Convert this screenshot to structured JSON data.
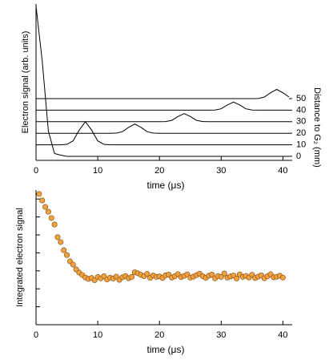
{
  "chart_data": [
    {
      "type": "line",
      "ylabel": "Electron signal (arb. units)",
      "y2label": "Distance to G₂ (mm)",
      "xlabel": "time (μs)",
      "x": [
        0,
        1,
        2,
        3,
        4,
        5,
        6,
        7,
        8,
        9,
        10,
        11,
        12,
        13,
        14,
        15,
        16,
        17,
        18,
        19,
        20,
        21,
        22,
        23,
        24,
        25,
        26,
        27,
        28,
        29,
        30,
        31,
        32,
        33,
        34,
        35,
        36,
        37,
        38,
        39,
        40,
        41
      ],
      "series": [
        {
          "color": "#000000",
          "values": [
            130,
            83,
            22,
            2.4,
            1,
            0,
            0,
            0,
            0,
            0,
            0,
            0,
            0,
            0,
            0,
            0,
            0,
            0,
            0,
            0,
            0,
            0,
            0,
            0,
            0,
            0,
            0,
            0,
            0,
            0,
            0,
            0,
            0,
            0,
            0,
            0,
            0,
            0,
            0,
            0,
            0,
            0
          ]
        },
        {
          "color": "#000000",
          "values": [
            10,
            10,
            10,
            10,
            10,
            10.4,
            13.4,
            22.8,
            30,
            22.8,
            13.4,
            10.4,
            10,
            10,
            10,
            10,
            10,
            10,
            10,
            10,
            10,
            10,
            10,
            10,
            10,
            10,
            10,
            10,
            10,
            10,
            10,
            10,
            10,
            10,
            10,
            10,
            10,
            10,
            10,
            10,
            10,
            10
          ]
        },
        {
          "color": "#000000",
          "values": [
            20,
            20,
            20,
            20,
            20,
            20,
            20,
            20,
            20,
            20,
            20,
            20,
            20,
            20.1,
            21.4,
            25.1,
            28,
            25.1,
            21.4,
            20.1,
            20,
            20,
            20,
            20,
            20,
            20,
            20,
            20,
            20,
            20,
            20,
            20,
            20,
            20,
            20,
            20,
            20,
            20,
            20,
            20,
            20,
            20
          ]
        },
        {
          "color": "#000000",
          "values": [
            30,
            30,
            30,
            30,
            30,
            30,
            30,
            30,
            30,
            30,
            30,
            30,
            30,
            30,
            30,
            30,
            30,
            30,
            30,
            30,
            30,
            30.1,
            31.2,
            34.5,
            37,
            34.5,
            31.2,
            30.1,
            30,
            30,
            30,
            30,
            30,
            30,
            30,
            30,
            30,
            30,
            30,
            30,
            30,
            30
          ]
        },
        {
          "color": "#000000",
          "values": [
            40,
            40,
            40,
            40,
            40,
            40,
            40,
            40,
            40,
            40,
            40,
            40,
            40,
            40,
            40,
            40,
            40,
            40,
            40,
            40,
            40,
            40,
            40,
            40,
            40,
            40,
            40,
            40,
            40,
            40.1,
            41.2,
            44.5,
            47,
            44.5,
            41.2,
            40.1,
            40,
            40,
            40,
            40,
            40,
            40
          ]
        },
        {
          "color": "#000000",
          "values": [
            50,
            50,
            50,
            50,
            50,
            50,
            50,
            50,
            50,
            50,
            50,
            50,
            50,
            50,
            50,
            50,
            50,
            50,
            50,
            50,
            50,
            50,
            50,
            50,
            50,
            50,
            50,
            50,
            50,
            50,
            50,
            50,
            50,
            50,
            50,
            50,
            50.1,
            51.4,
            55.1,
            58,
            55.1,
            51.4
          ]
        }
      ],
      "xlim": [
        0,
        41.5
      ],
      "xticks": [
        0,
        10,
        20,
        30,
        40
      ],
      "ylim": [
        -3.5,
        132
      ],
      "yticks": [
        0,
        10,
        20,
        30,
        40,
        50
      ],
      "grid": false
    },
    {
      "type": "scatter",
      "ylabel": "Integrated electron signal",
      "xlabel": "time (μs)",
      "color": "#f2a040",
      "x": [
        0.5,
        1,
        1.5,
        2,
        2.5,
        3,
        3.5,
        4,
        4.5,
        5,
        5.5,
        6,
        6.5,
        7,
        7.5,
        8,
        8.5,
        9,
        9.5,
        10,
        10.5,
        11,
        11.5,
        12,
        12.5,
        13,
        13.5,
        14,
        14.5,
        15,
        15.5,
        16,
        16.5,
        17,
        17.5,
        18,
        18.5,
        19,
        19.5,
        20,
        20.5,
        21,
        21.5,
        22,
        22.5,
        23,
        23.5,
        24,
        24.5,
        25,
        25.5,
        26,
        26.5,
        27,
        27.5,
        28,
        28.5,
        29,
        29.5,
        30,
        30.5,
        31,
        31.5,
        32,
        32.5,
        33,
        33.5,
        34,
        34.5,
        35,
        35.5,
        36,
        36.5,
        37,
        37.5,
        38,
        38.5,
        39,
        39.5,
        40
      ],
      "values": [
        7.28,
        6.92,
        6.56,
        6.29,
        5.94,
        5.58,
        4.87,
        4.6,
        4.15,
        3.88,
        3.53,
        3.35,
        3.08,
        2.9,
        2.77,
        2.63,
        2.55,
        2.6,
        2.48,
        2.66,
        2.58,
        2.7,
        2.52,
        2.62,
        2.57,
        2.68,
        2.5,
        2.64,
        2.71,
        2.59,
        2.66,
        2.92,
        2.86,
        2.78,
        2.7,
        2.83,
        2.61,
        2.74,
        2.66,
        2.69,
        2.6,
        2.75,
        2.79,
        2.63,
        2.7,
        2.82,
        2.65,
        2.72,
        2.8,
        2.62,
        2.68,
        2.76,
        2.84,
        2.7,
        2.61,
        2.73,
        2.79,
        2.58,
        2.71,
        2.66,
        2.85,
        2.62,
        2.69,
        2.74,
        2.57,
        2.8,
        2.66,
        2.72,
        2.63,
        2.78,
        2.6,
        2.68,
        2.75,
        2.59,
        2.7,
        2.81,
        2.64,
        2.67,
        2.73,
        2.62
      ],
      "xlim": [
        0,
        41.5
      ],
      "xticks": [
        0,
        10,
        20,
        30,
        40
      ],
      "ylim": [
        0,
        7.5
      ],
      "yticks": [
        1,
        2,
        3,
        4,
        5,
        6,
        7
      ],
      "grid": false
    }
  ]
}
